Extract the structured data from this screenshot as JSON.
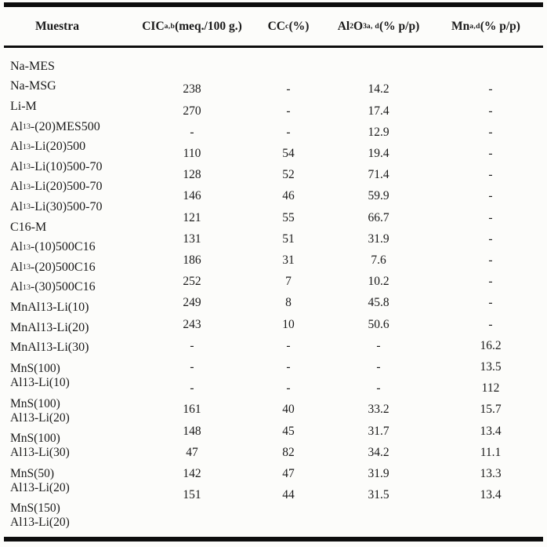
{
  "document": {
    "kind": "scanned-academic-table",
    "language": "es"
  },
  "table": {
    "columns": [
      {
        "id": "muestra",
        "label_html": "Muestra",
        "label_text": "Muestra"
      },
      {
        "id": "cic",
        "label_html": "CIC<sup>a,b</sup> (meq./100 g.)",
        "label_text": "CIC a,b (meq./100 g.)"
      },
      {
        "id": "cc",
        "label_html": "CC<sup>c</sup> (%)",
        "label_text": "CC c (%)"
      },
      {
        "id": "al2o3",
        "label_html": "Al<sub>2</sub>O<sub>3</sub><sup>a, d</sup> (% p/p)",
        "label_text": "Al2O3 a, d (% p/p)"
      },
      {
        "id": "mn",
        "label_html": "Mn<sup>a,d</sup> (% p/p)",
        "label_text": "Mn a,d (% p/p)"
      }
    ],
    "empty_value_symbol": "-",
    "rows": [
      {
        "name_lines_html": [
          "Na-MES"
        ],
        "name_text": "Na-MES",
        "values": [
          "238",
          "-",
          "14.2",
          "-"
        ]
      },
      {
        "name_lines_html": [
          "Na-MSG"
        ],
        "name_text": "Na-MSG",
        "values": [
          "270",
          "-",
          "17.4",
          "-"
        ]
      },
      {
        "name_lines_html": [
          "Li-M"
        ],
        "name_text": "Li-M",
        "values": [
          "-",
          "-",
          "12.9",
          "-"
        ]
      },
      {
        "name_lines_html": [
          "Al<sub>13</sub>-(20)MES500"
        ],
        "name_text": "Al13-(20)MES500",
        "values": [
          "110",
          "54",
          "19.4",
          "-"
        ]
      },
      {
        "name_lines_html": [
          "Al<sub>13</sub>-Li(20)500"
        ],
        "name_text": "Al13-Li(20)500",
        "values": [
          "128",
          "52",
          "71.4",
          "-"
        ]
      },
      {
        "name_lines_html": [
          "Al<sub>13</sub>-Li(10)500-70"
        ],
        "name_text": "Al13-Li(10)500-70",
        "values": [
          "146",
          "46",
          "59.9",
          "-"
        ]
      },
      {
        "name_lines_html": [
          "Al<sub>13</sub>-Li(20)500-70"
        ],
        "name_text": "Al13-Li(20)500-70",
        "values": [
          "121",
          "55",
          "66.7",
          "-"
        ]
      },
      {
        "name_lines_html": [
          "Al<sub>13</sub>-Li(30)500-70"
        ],
        "name_text": "Al13-Li(30)500-70",
        "values": [
          "131",
          "51",
          "31.9",
          "-"
        ]
      },
      {
        "name_lines_html": [
          "C16-M"
        ],
        "name_text": "C16-M",
        "values": [
          "186",
          "31",
          "7.6",
          "-"
        ]
      },
      {
        "name_lines_html": [
          "Al<sub>13</sub>-(10)500C16"
        ],
        "name_text": "Al13-(10)500C16",
        "values": [
          "252",
          "7",
          "10.2",
          "-"
        ]
      },
      {
        "name_lines_html": [
          "Al<sub>13</sub>-(20)500C16"
        ],
        "name_text": "Al13-(20)500C16",
        "values": [
          "249",
          "8",
          "45.8",
          "-"
        ]
      },
      {
        "name_lines_html": [
          "Al<sub>13</sub>-(30)500C16"
        ],
        "name_text": "Al13-(30)500C16",
        "values": [
          "243",
          "10",
          "50.6",
          "-"
        ]
      },
      {
        "name_lines_html": [
          "MnAl13-Li(10)"
        ],
        "name_text": "MnAl13-Li(10)",
        "values": [
          "-",
          "-",
          "-",
          "16.2"
        ]
      },
      {
        "name_lines_html": [
          "MnAl13-Li(20)"
        ],
        "name_text": "MnAl13-Li(20)",
        "values": [
          "-",
          "-",
          "-",
          "13.5"
        ]
      },
      {
        "name_lines_html": [
          "MnAl13-Li(30)"
        ],
        "name_text": "MnAl13-Li(30)",
        "values": [
          "-",
          "-",
          "-",
          "112"
        ]
      },
      {
        "name_lines_html": [
          "MnS(100)",
          "Al13-Li(10)"
        ],
        "name_text": "MnS(100) Al13-Li(10)",
        "values": [
          "161",
          "40",
          "33.2",
          "15.7"
        ]
      },
      {
        "name_lines_html": [
          "MnS(100)",
          "Al13-Li(20)"
        ],
        "name_text": "MnS(100) Al13-Li(20)",
        "values": [
          "148",
          "45",
          "31.7",
          "13.4"
        ]
      },
      {
        "name_lines_html": [
          "MnS(100)",
          "Al13-Li(30)"
        ],
        "name_text": "MnS(100) Al13-Li(30)",
        "values": [
          "47",
          "82",
          "34.2",
          "11.1"
        ]
      },
      {
        "name_lines_html": [
          "MnS(50)",
          "Al13-Li(20)"
        ],
        "name_text": "MnS(50) Al13-Li(20)",
        "values": [
          "142",
          "47",
          "31.9",
          "13.3"
        ]
      },
      {
        "name_lines_html": [
          "MnS(150)",
          "Al13-Li(20)"
        ],
        "name_text": "MnS(150) Al13-Li(20)",
        "values": [
          "151",
          "44",
          "31.5",
          "13.4"
        ]
      }
    ]
  }
}
